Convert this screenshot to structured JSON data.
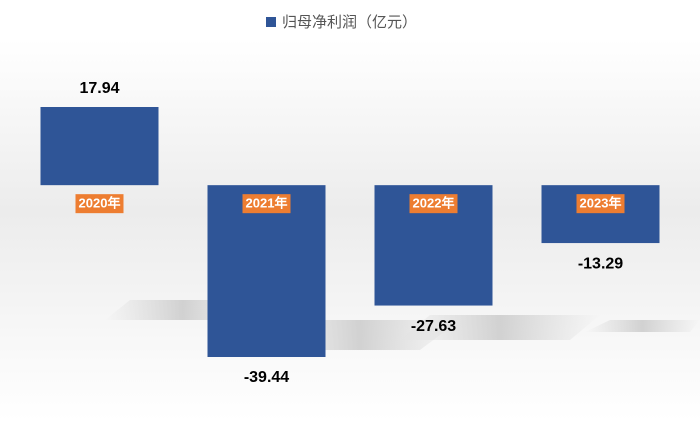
{
  "chart_data": {
    "type": "bar",
    "categories": [
      "2020年",
      "2021年",
      "2022年",
      "2023年"
    ],
    "series": [
      {
        "name": "归母净利润（亿元）",
        "color": "#2f5597",
        "values": [
          17.94,
          -39.44,
          -27.63,
          -13.29
        ]
      }
    ],
    "label_color": "#ed7d31"
  }
}
